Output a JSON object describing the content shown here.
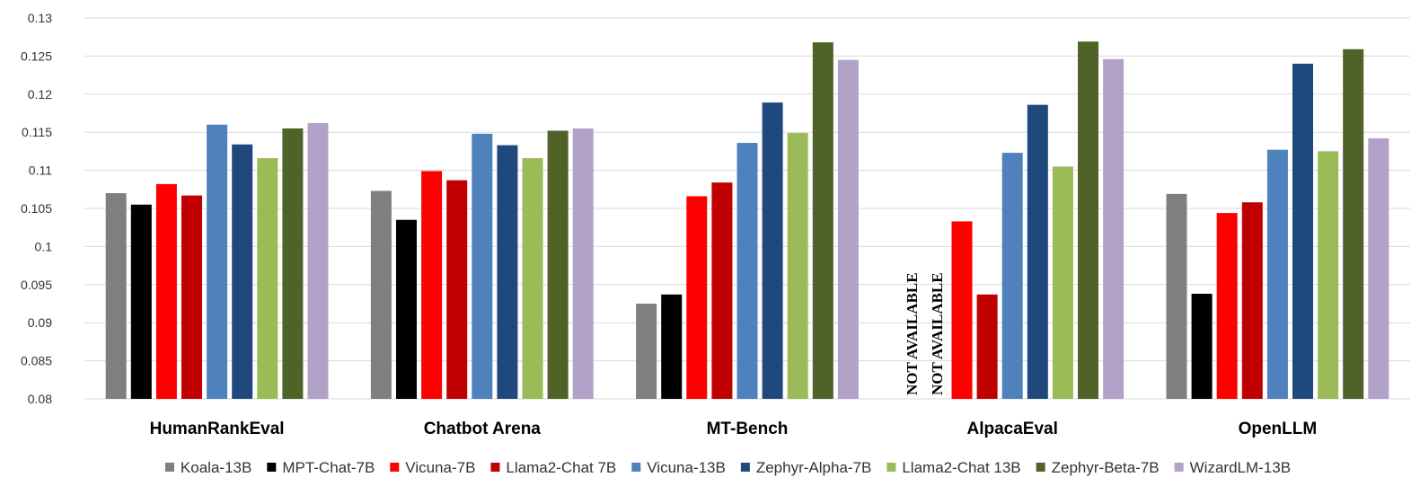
{
  "chart_data": {
    "type": "bar",
    "categories": [
      "HumanRankEval",
      "Chatbot Arena",
      "MT-Bench",
      "AlpacaEval",
      "OpenLLM"
    ],
    "ylim": [
      0.08,
      0.13
    ],
    "yticks": [
      "0.08",
      "0.085",
      "0.09",
      "0.095",
      "0.1",
      "0.105",
      "0.11",
      "0.115",
      "0.12",
      "0.125",
      "0.13"
    ],
    "grid": true,
    "legend_position": "bottom",
    "not_available_label": "NOT AVAILABLE",
    "series": [
      {
        "name": "Koala-13B",
        "color": "#7f7f7f",
        "values": [
          0.107,
          0.1073,
          0.0925,
          null,
          0.1069
        ]
      },
      {
        "name": "MPT-Chat-7B",
        "color": "#000000",
        "values": [
          0.1055,
          0.1035,
          0.0937,
          null,
          0.0938
        ]
      },
      {
        "name": "Vicuna-7B",
        "color": "#ff0000",
        "values": [
          0.1082,
          0.1099,
          0.1066,
          0.1033,
          0.1044
        ]
      },
      {
        "name": "Llama2-Chat 7B",
        "color": "#c00000",
        "values": [
          0.1067,
          0.1087,
          0.1084,
          0.0937,
          0.1058
        ]
      },
      {
        "name": "Vicuna-13B",
        "color": "#4f81bd",
        "values": [
          0.116,
          0.1148,
          0.1136,
          0.1123,
          0.1127
        ]
      },
      {
        "name": "Zephyr-Alpha-7B",
        "color": "#1f497d",
        "values": [
          0.1134,
          0.1133,
          0.1189,
          0.1186,
          0.124
        ]
      },
      {
        "name": "Llama2-Chat 13B",
        "color": "#9bbb59",
        "values": [
          0.1116,
          0.1116,
          0.1149,
          0.1105,
          0.1125
        ]
      },
      {
        "name": "Zephyr-Beta-7B",
        "color": "#4f6228",
        "values": [
          0.1155,
          0.1152,
          0.1268,
          0.1269,
          0.1259
        ]
      },
      {
        "name": "WizardLM-13B",
        "color": "#b3a2c7",
        "values": [
          0.1162,
          0.1155,
          0.1245,
          0.1246,
          0.1142
        ]
      }
    ]
  }
}
